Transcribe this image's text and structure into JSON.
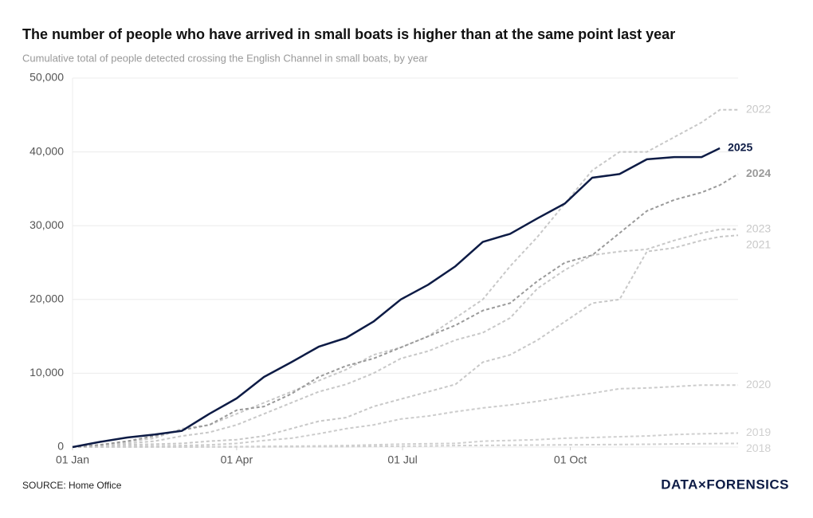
{
  "chart_data": {
    "type": "line",
    "title": "The number of people who have arrived in small boats is higher than at the same point last year",
    "subtitle": "Cumulative total of people detected crossing the English Channel in small boats, by year",
    "source": "SOURCE: Home Office",
    "logo": "DATA×FORENSICS",
    "x": [
      0,
      15,
      30,
      45,
      60,
      75,
      90,
      105,
      120,
      135,
      150,
      165,
      180,
      195,
      210,
      225,
      240,
      255,
      270,
      285,
      300,
      315,
      330,
      345,
      355,
      365
    ],
    "xlim": [
      0,
      365
    ],
    "xticks": [
      {
        "value": 0,
        "label": "01 Jan"
      },
      {
        "value": 90,
        "label": "01 Apr"
      },
      {
        "value": 181,
        "label": "01 Jul"
      },
      {
        "value": 273,
        "label": "01 Oct"
      }
    ],
    "ylim": [
      0,
      50000
    ],
    "yticks": [
      0,
      {
        "value": 10000,
        "label": "10,000"
      },
      {
        "value": 20000,
        "label": "20,000"
      },
      {
        "value": 30000,
        "label": "30,000"
      },
      {
        "value": 40000,
        "label": "40,000"
      },
      {
        "value": 50000,
        "label": "50,000"
      }
    ],
    "grid": true,
    "series": [
      {
        "name": "2018",
        "color": "#d0d0d0",
        "line_style": "dashed",
        "values": [
          0,
          0,
          0,
          0,
          0,
          10,
          20,
          30,
          40,
          50,
          70,
          100,
          120,
          150,
          200,
          230,
          250,
          270,
          300,
          320,
          350,
          380,
          420,
          450,
          480,
          500
        ]
      },
      {
        "name": "2019",
        "color": "#d0d0d0",
        "line_style": "dashed",
        "values": [
          0,
          10,
          20,
          30,
          40,
          50,
          60,
          100,
          120,
          150,
          200,
          300,
          400,
          450,
          500,
          800,
          900,
          1000,
          1200,
          1300,
          1400,
          1500,
          1700,
          1800,
          1850,
          1900
        ]
      },
      {
        "name": "2020",
        "color": "#cccccc",
        "line_style": "dashed",
        "values": [
          0,
          50,
          100,
          150,
          200,
          300,
          500,
          900,
          1200,
          1800,
          2500,
          3000,
          3800,
          4200,
          4800,
          5300,
          5700,
          6200,
          6800,
          7300,
          7900,
          8000,
          8200,
          8400,
          8400,
          8400
        ]
      },
      {
        "name": "2021",
        "color": "#c8c8c8",
        "line_style": "dashed",
        "values": [
          0,
          100,
          300,
          400,
          500,
          800,
          1000,
          1500,
          2500,
          3500,
          4000,
          5500,
          6500,
          7500,
          8500,
          11500,
          12500,
          14500,
          17000,
          19500,
          20000,
          26500,
          27000,
          28000,
          28500,
          28700
        ]
      },
      {
        "name": "2023",
        "color": "#c8c8c8",
        "line_style": "dashed",
        "values": [
          0,
          200,
          500,
          800,
          1500,
          2000,
          3000,
          4500,
          6000,
          7500,
          8500,
          10000,
          12000,
          13000,
          14500,
          15500,
          17500,
          21500,
          24000,
          26000,
          26500,
          26800,
          28000,
          29000,
          29500,
          29500
        ]
      },
      {
        "name": "2022",
        "color": "#c8c8c8",
        "line_style": "dashed",
        "values": [
          0,
          300,
          700,
          1200,
          2500,
          3000,
          4500,
          6000,
          7500,
          9000,
          10500,
          12500,
          13500,
          15000,
          17500,
          20000,
          24500,
          28500,
          33000,
          37500,
          40000,
          40000,
          42000,
          44000,
          45700,
          45700
        ]
      },
      {
        "name": "2024",
        "color": "#9a9a9a",
        "line_style": "dashed",
        "values": [
          0,
          300,
          800,
          1500,
          2300,
          3000,
          5000,
          5500,
          7200,
          9500,
          11000,
          12000,
          13500,
          15000,
          16500,
          18500,
          19500,
          22500,
          25000,
          26000,
          29000,
          32000,
          33500,
          34500,
          35500,
          37000
        ]
      },
      {
        "name": "2025",
        "color": "#0d1b45",
        "line_style": "solid",
        "values": [
          0,
          700,
          1300,
          1700,
          2200,
          4500,
          6600,
          9500,
          11500,
          13600,
          14800,
          17000,
          20000,
          22000,
          24500,
          27800,
          28900,
          31000,
          33000,
          36500,
          37000,
          39000,
          39300,
          39300,
          40500,
          null
        ]
      }
    ]
  }
}
